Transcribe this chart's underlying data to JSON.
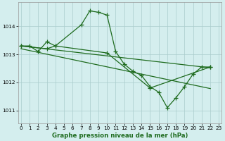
{
  "line1_x": [
    0,
    1,
    2,
    3,
    4,
    7,
    8,
    9,
    10,
    11,
    12,
    13,
    14,
    15,
    16,
    17,
    18,
    19,
    20,
    21,
    22
  ],
  "line1_y": [
    1013.3,
    1013.3,
    1013.1,
    1013.45,
    1013.3,
    1014.05,
    1014.55,
    1014.5,
    1014.4,
    1013.1,
    1012.65,
    1012.4,
    1012.25,
    1011.85,
    1011.65,
    1011.1,
    1011.45,
    1011.85,
    1012.3,
    1012.55,
    1012.55
  ],
  "line2_x": [
    0,
    3,
    4,
    10,
    15,
    22
  ],
  "line2_y": [
    1013.3,
    1013.2,
    1013.3,
    1013.05,
    1011.8,
    1012.55
  ],
  "line3_x": [
    0,
    22
  ],
  "line3_y": [
    1013.3,
    1012.52
  ],
  "line4_x": [
    0,
    22
  ],
  "line4_y": [
    1013.2,
    1011.78
  ],
  "color": "#1e6b1e",
  "bg_color": "#d4eeee",
  "grid_color": "#aacccc",
  "xlabel": "Graphe pression niveau de la mer (hPa)",
  "xticks": [
    0,
    1,
    2,
    3,
    4,
    5,
    6,
    7,
    8,
    9,
    10,
    11,
    12,
    13,
    14,
    15,
    16,
    17,
    18,
    19,
    20,
    21,
    22,
    23
  ],
  "yticks": [
    1011,
    1012,
    1013,
    1014
  ],
  "ylim": [
    1010.55,
    1014.85
  ],
  "xlim": [
    -0.3,
    23.3
  ],
  "marker": "+",
  "markersize": 4,
  "linewidth": 0.9
}
